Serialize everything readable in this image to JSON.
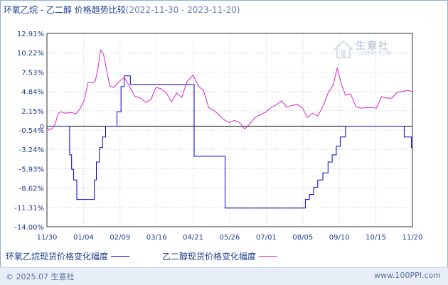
{
  "title": {
    "main": "环氧乙烷 - 乙二醇 价格趋势比较",
    "range": "(2022-11-30 - 2023-11-20)"
  },
  "watermark": {
    "name": "生意社",
    "url": "100PPI.COM",
    "icon": "house-logo-icon"
  },
  "legend": {
    "series1": "环氧乙烷现货价格变化幅度",
    "series2": "乙二醇现货价格变化幅度"
  },
  "footer": {
    "copyright": "© 2025.07 生意社",
    "url": "www.100PPI.com"
  },
  "colors": {
    "series1": "#0000cc",
    "series2": "#dd22cc",
    "grid": "#cccccc",
    "zero": "#000000",
    "axis_text": "#1d3d8f"
  },
  "chart_data": {
    "type": "line",
    "ylim": [
      -14.0,
      12.91
    ],
    "yticks": [
      "12.91%",
      "10.22%",
      "7.53%",
      "4.84%",
      "2.15%",
      "-0.54%",
      "-3.24%",
      "-5.93%",
      "-8.62%",
      "-11.31%",
      "-14.00%"
    ],
    "ytick_values": [
      12.91,
      10.22,
      7.53,
      4.84,
      2.15,
      -0.54,
      -3.24,
      -5.93,
      -8.62,
      -11.31,
      -14.0
    ],
    "xticks": [
      "11/30",
      "01/04",
      "02/09",
      "03/16",
      "04/21",
      "05/26",
      "07/01",
      "08/05",
      "09/10",
      "10/15",
      "11/20"
    ],
    "zero_line": 0,
    "grid": true,
    "series": [
      {
        "name": "环氧乙烷现货价格变化幅度",
        "x": [
          "2022-11-30",
          "2022-12-20",
          "2022-12-22",
          "2022-12-24",
          "2022-12-26",
          "2022-12-29",
          "2023-01-05",
          "2023-01-08",
          "2023-01-13",
          "2023-01-15",
          "2023-01-17",
          "2023-01-20",
          "2023-01-23",
          "2023-01-26",
          "2023-02-02",
          "2023-02-06",
          "2023-02-10",
          "2023-02-13",
          "2023-02-16",
          "2023-02-19",
          "2023-02-24",
          "2023-03-01",
          "2023-03-10",
          "2023-03-15",
          "2023-04-21",
          "2023-04-22",
          "2023-05-20",
          "2023-05-22",
          "2023-06-05",
          "2023-07-20",
          "2023-08-04",
          "2023-08-08",
          "2023-08-12",
          "2023-08-16",
          "2023-08-20",
          "2023-08-25",
          "2023-08-30",
          "2023-09-03",
          "2023-09-07",
          "2023-09-11",
          "2023-09-16",
          "2023-09-20",
          "2023-09-26",
          "2023-10-26",
          "2023-11-10",
          "2023-11-12",
          "2023-11-19",
          "2023-11-20"
        ],
        "y": [
          0,
          0,
          -4,
          -6,
          -7.5,
          -10.2,
          -10.2,
          -10.2,
          -10.2,
          -7.5,
          -5,
          -3,
          -1.5,
          0,
          0,
          2,
          5.5,
          7,
          7,
          5.8,
          5.8,
          5.8,
          5.8,
          5.8,
          5.8,
          -4.2,
          -4.2,
          -11.4,
          -11.4,
          -11.4,
          -11.4,
          -10.2,
          -9.5,
          -8.5,
          -7.5,
          -6.5,
          -5,
          -4,
          -2.8,
          -1.5,
          0,
          0,
          0,
          0,
          0,
          -1.5,
          -3,
          -6.2
        ]
      },
      {
        "name": "乙二醇现货价格变化幅度",
        "x": [
          "2022-11-30",
          "2022-12-02",
          "2022-12-05",
          "2022-12-08",
          "2022-12-11",
          "2022-12-14",
          "2022-12-18",
          "2022-12-22",
          "2022-12-24",
          "2022-12-28",
          "2023-01-01",
          "2023-01-05",
          "2023-01-09",
          "2023-01-13",
          "2023-01-16",
          "2023-01-19",
          "2023-01-21",
          "2023-01-24",
          "2023-01-27",
          "2023-01-30",
          "2023-02-03",
          "2023-02-08",
          "2023-02-13",
          "2023-02-18",
          "2023-02-23",
          "2023-03-01",
          "2023-03-06",
          "2023-03-11",
          "2023-03-16",
          "2023-03-21",
          "2023-03-26",
          "2023-03-31",
          "2023-04-05",
          "2023-04-10",
          "2023-04-15",
          "2023-04-21",
          "2023-04-26",
          "2023-05-01",
          "2023-05-06",
          "2023-05-11",
          "2023-05-16",
          "2023-05-21",
          "2023-05-26",
          "2023-05-31",
          "2023-06-05",
          "2023-06-10",
          "2023-06-15",
          "2023-06-20",
          "2023-06-25",
          "2023-07-01",
          "2023-07-06",
          "2023-07-11",
          "2023-07-16",
          "2023-07-21",
          "2023-07-26",
          "2023-07-31",
          "2023-08-05",
          "2023-08-10",
          "2023-08-15",
          "2023-08-20",
          "2023-08-25",
          "2023-08-30",
          "2023-09-04",
          "2023-09-08",
          "2023-09-12",
          "2023-09-16",
          "2023-09-21",
          "2023-09-26",
          "2023-10-01",
          "2023-10-06",
          "2023-10-11",
          "2023-10-16",
          "2023-10-21",
          "2023-10-26",
          "2023-10-31",
          "2023-11-05",
          "2023-11-10",
          "2023-11-15",
          "2023-11-20"
        ],
        "y": [
          -0.2,
          -0.5,
          -0.3,
          0.3,
          1.8,
          2.0,
          1.8,
          1.9,
          1.9,
          1.7,
          2.4,
          3.5,
          6.1,
          6.0,
          6.3,
          8.4,
          10.6,
          10.0,
          7.8,
          5.6,
          5.4,
          6.2,
          6.8,
          5.6,
          4.2,
          3.9,
          3.3,
          3.7,
          5.4,
          5.2,
          4.6,
          3.4,
          4.6,
          4.0,
          6.2,
          7.1,
          5.6,
          5.0,
          2.6,
          2.2,
          1.6,
          0.9,
          0.5,
          0.8,
          0.5,
          -0.4,
          0.3,
          1.2,
          1.6,
          2.0,
          2.6,
          3.0,
          3.5,
          2.6,
          2.9,
          3.0,
          2.6,
          1.2,
          1.8,
          1.4,
          2.7,
          4.6,
          5.7,
          8.1,
          5.8,
          4.3,
          4.5,
          2.7,
          2.5,
          2.6,
          2.6,
          2.5,
          4.1,
          3.9,
          3.9,
          4.7,
          4.8,
          5.0,
          4.8
        ]
      }
    ]
  }
}
